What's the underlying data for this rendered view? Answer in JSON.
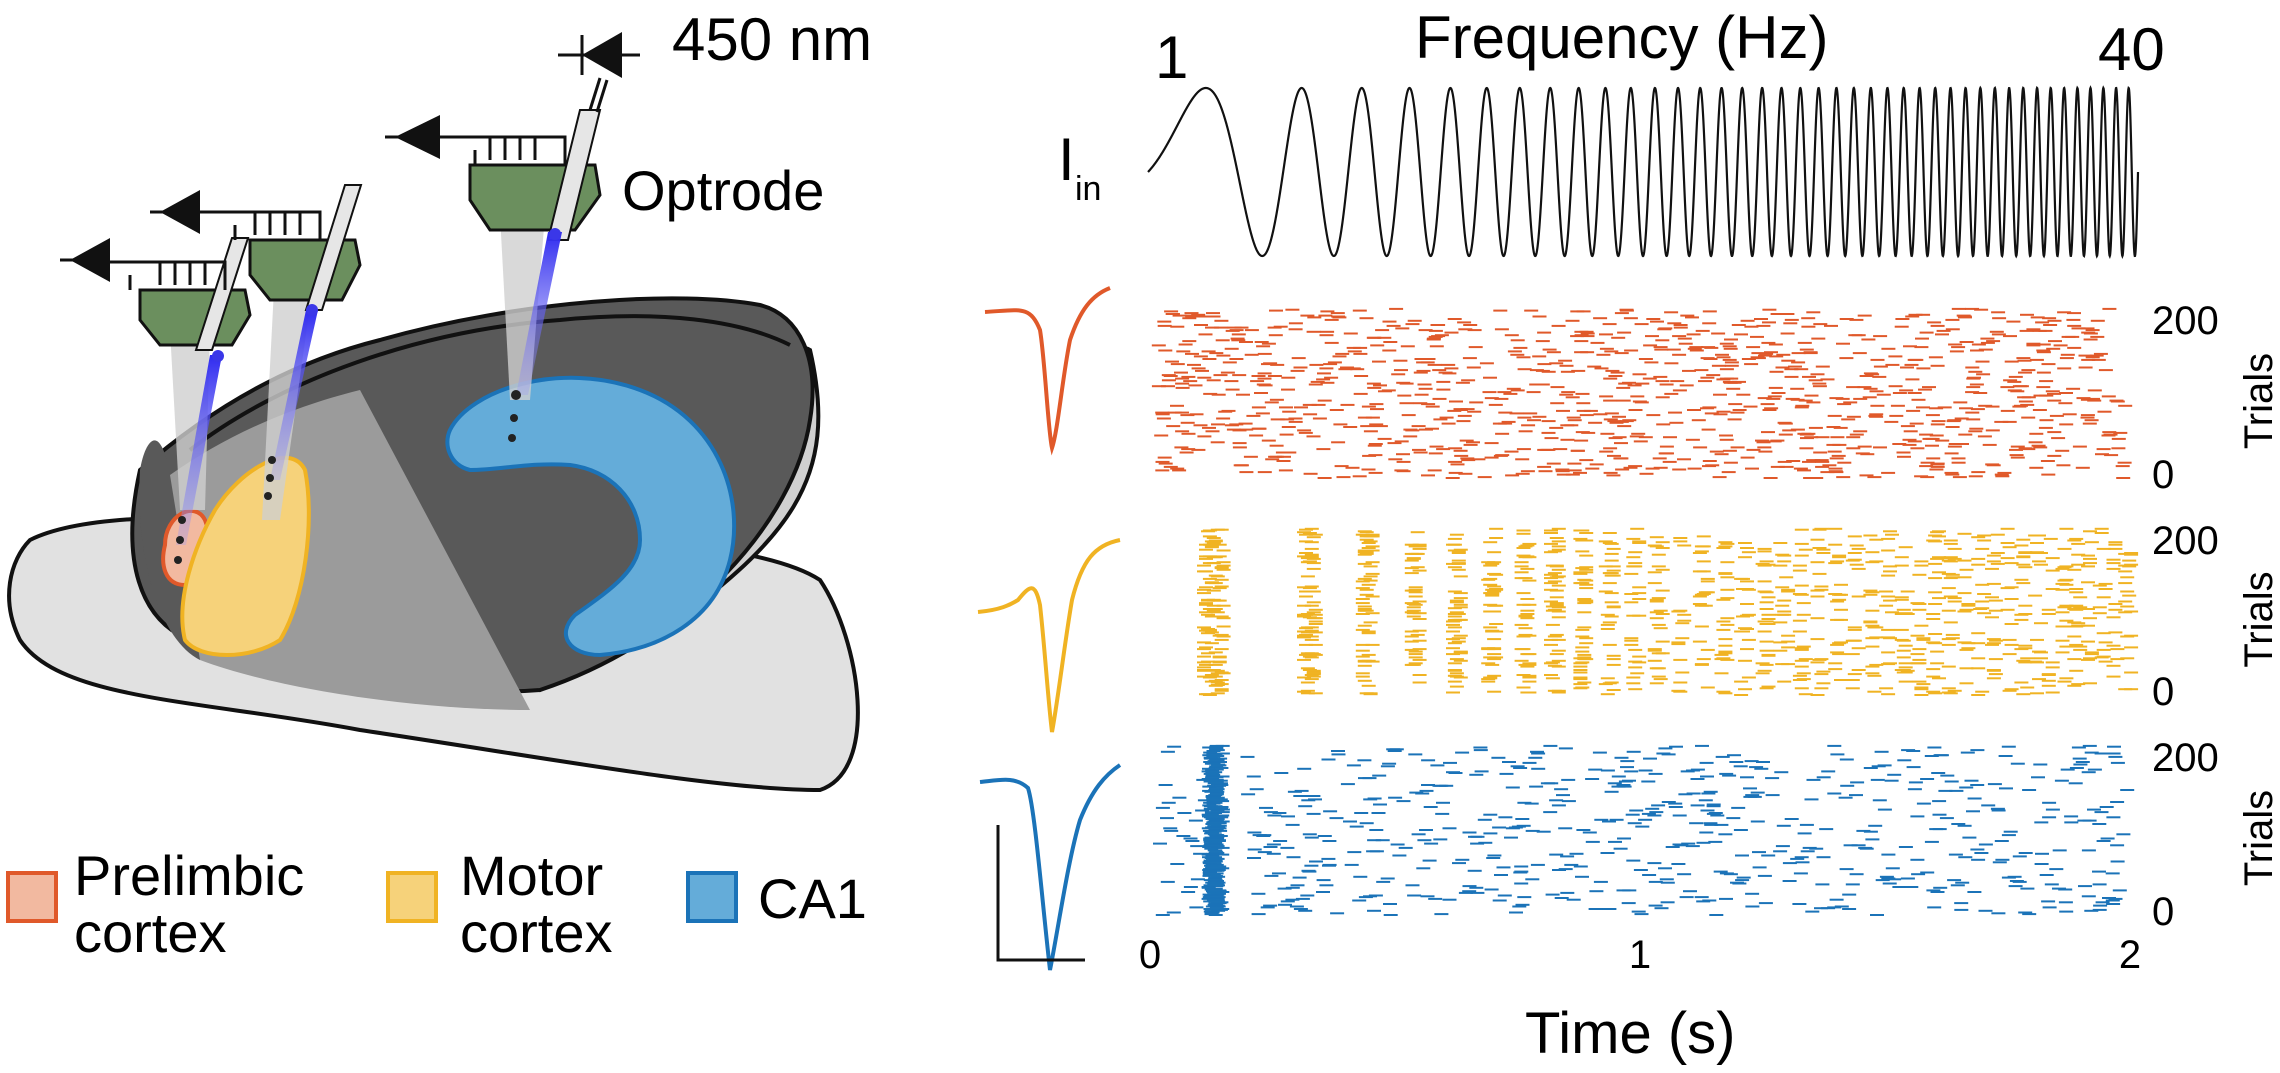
{
  "light_label": "450 nm",
  "optrode_label": "Optrode",
  "input": {
    "symbol": "I",
    "subscript": "in"
  },
  "frequency": {
    "title": "Frequency (Hz)",
    "start_label": "1",
    "end_label": "40",
    "start_hz": 1,
    "end_hz": 40
  },
  "legend": [
    {
      "line1": "Prelimbic",
      "line2": "cortex",
      "color": "#e0592a",
      "fill": "#f2b9a0"
    },
    {
      "line1": "Motor",
      "line2": "cortex",
      "color": "#f0b323",
      "fill": "#f6d27a"
    },
    {
      "line1": "CA1",
      "line2": "",
      "color": "#1b73b8",
      "fill": "#64acd9"
    }
  ],
  "chart_data": {
    "type": "scatter",
    "xlabel": "Time (s)",
    "xlim": [
      0,
      2
    ],
    "x_ticks": [
      "0",
      "1",
      "2"
    ],
    "ylabel": "Trials",
    "ylim": [
      0,
      200
    ],
    "y_ticks": [
      "0",
      "200"
    ],
    "panels": [
      {
        "region": "Prelimbic cortex",
        "color": "#e0592a",
        "pattern": "uniform"
      },
      {
        "region": "Motor cortex",
        "color": "#f0b323",
        "pattern": "phase-locked stripes at low frequency"
      },
      {
        "region": "CA1",
        "color": "#1b73b8",
        "pattern": "dense band at ~0.12 s, then sparse"
      }
    ]
  },
  "colors": {
    "brain_dark": "#595959",
    "brain_light": "#e0e0e0",
    "headstage": "#6b8f5e",
    "light": "#3a37e8"
  }
}
